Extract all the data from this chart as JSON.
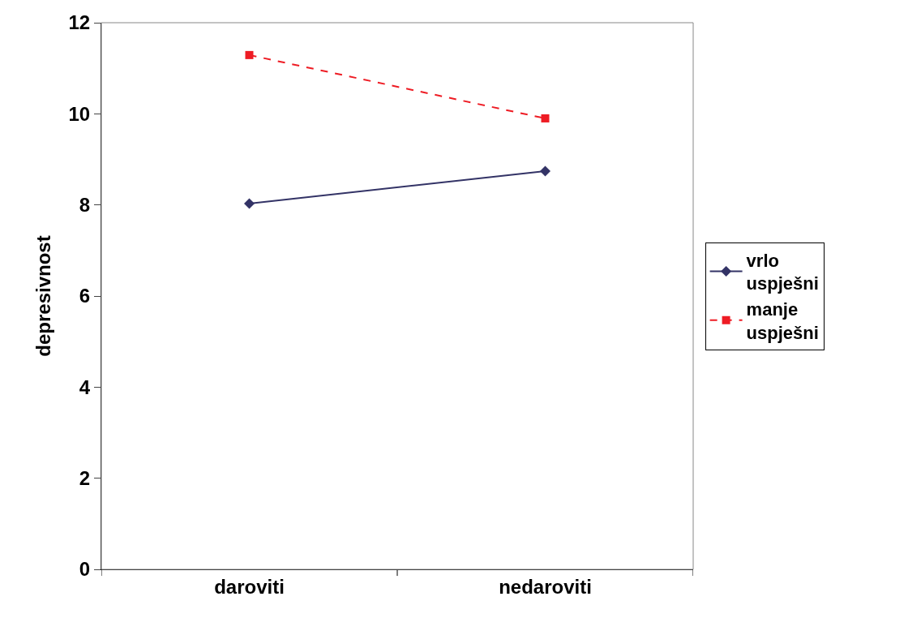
{
  "chart_data": {
    "type": "line",
    "ylabel": "depresivnost",
    "categories": [
      "daroviti",
      "nedaroviti"
    ],
    "series": [
      {
        "name": "vrlo uspješni",
        "color": "#333366",
        "values": [
          8.03,
          8.74
        ],
        "marker": "diamond",
        "line_style": "solid"
      },
      {
        "name": "manje uspješni",
        "color": "#ee1c24",
        "values": [
          11.29,
          9.9
        ],
        "marker": "square",
        "line_style": "dashed"
      }
    ],
    "ylim": [
      0,
      12
    ],
    "yticks": [
      0,
      2,
      4,
      6,
      8,
      10,
      12
    ],
    "legend": "right"
  }
}
